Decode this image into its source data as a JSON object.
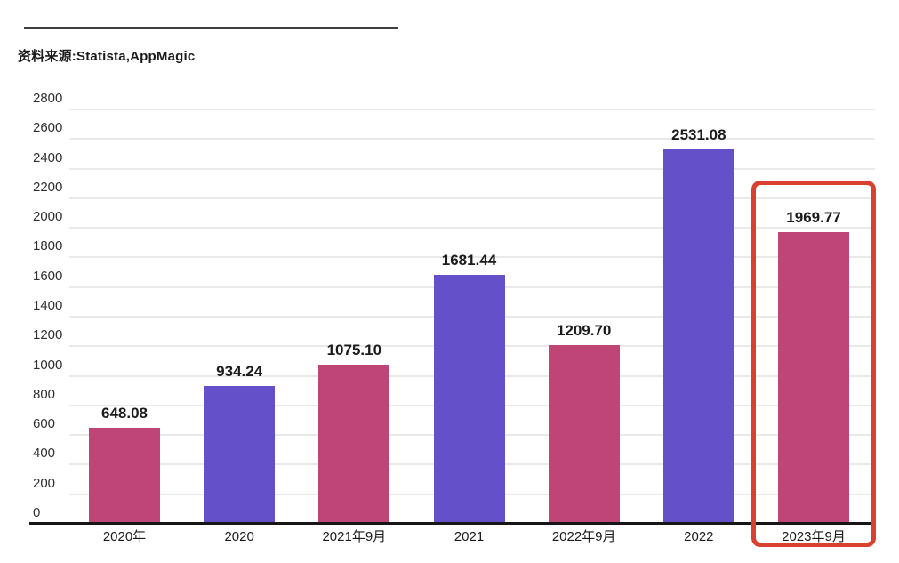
{
  "header": {
    "source_label": "资料来源:Statista,AppMagic"
  },
  "colors": {
    "bar_pink": "#c04577",
    "bar_purple": "#6451c9",
    "highlight_red": "#d8402f",
    "gridline": "#e9e9e9",
    "axis_line": "#161616",
    "top_rule": "#3e3e3e",
    "value_label_text": "#1b1b1b",
    "tick_label_text": "#303030"
  },
  "chart_data": {
    "type": "bar",
    "categories": [
      "2020年",
      "2020",
      "2021年9月",
      "2021",
      "2022年9月",
      "2022",
      "2023年9月"
    ],
    "values": [
      648.08,
      934.24,
      1075.1,
      1681.44,
      1209.7,
      2531.08,
      1969.77
    ],
    "value_labels": [
      "648.08",
      "934.24",
      "1075.10",
      "1681.44",
      "1209.70",
      "2531.08",
      "1969.77"
    ],
    "bar_colors": [
      "pink",
      "purple",
      "pink",
      "purple",
      "pink",
      "purple",
      "pink"
    ],
    "y_ticks": [
      0,
      200,
      400,
      600,
      800,
      1000,
      1200,
      1400,
      1600,
      1800,
      2000,
      2200,
      2400,
      2600,
      2800
    ],
    "ylim": [
      0,
      2800
    ],
    "grid": true,
    "legend": null,
    "title": "",
    "xlabel": "",
    "ylabel": "",
    "highlighted_category": "2023年9月"
  }
}
